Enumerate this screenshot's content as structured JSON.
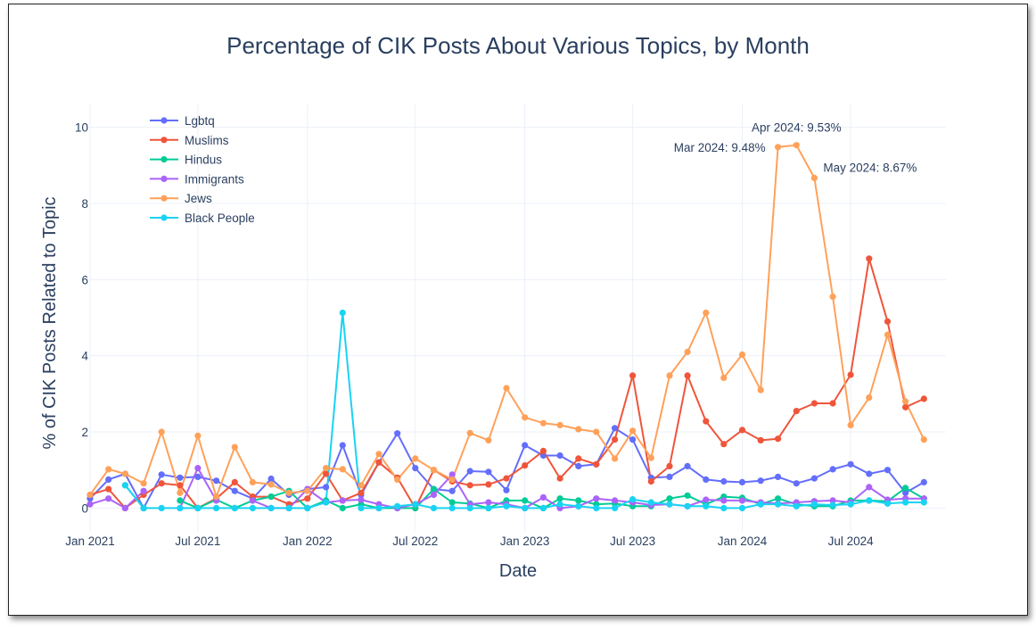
{
  "chart_data": {
    "type": "line",
    "title": "Percentage of CIK Posts About Various Topics, by Month",
    "xlabel": "Date",
    "ylabel": "% of CIK Posts Related to Topic",
    "ylim": [
      -0.6,
      10.6
    ],
    "xlim": [
      "2021-01-01",
      "2024-12-08"
    ],
    "grid": true,
    "legend_position": "top-left",
    "yticks": [
      0,
      2,
      4,
      6,
      8,
      10
    ],
    "xticks": [
      {
        "date": "2021-01-01",
        "label": "Jan 2021"
      },
      {
        "date": "2021-07-01",
        "label": "Jul 2021"
      },
      {
        "date": "2022-01-01",
        "label": "Jan 2022"
      },
      {
        "date": "2022-07-01",
        "label": "Jul 2022"
      },
      {
        "date": "2023-01-01",
        "label": "Jan 2023"
      },
      {
        "date": "2023-07-01",
        "label": "Jul 2023"
      },
      {
        "date": "2024-01-01",
        "label": "Jan 2024"
      },
      {
        "date": "2024-07-01",
        "label": "Jul 2024"
      }
    ],
    "x": [
      "2021-01",
      "2021-02",
      "2021-03",
      "2021-04",
      "2021-05",
      "2021-06",
      "2021-07",
      "2021-08",
      "2021-09",
      "2021-10",
      "2021-11",
      "2021-12",
      "2022-01",
      "2022-02",
      "2022-03",
      "2022-04",
      "2022-05",
      "2022-06",
      "2022-07",
      "2022-08",
      "2022-09",
      "2022-10",
      "2022-11",
      "2022-12",
      "2023-01",
      "2023-02",
      "2023-03",
      "2023-04",
      "2023-05",
      "2023-06",
      "2023-07",
      "2023-08",
      "2023-09",
      "2023-10",
      "2023-11",
      "2023-12",
      "2024-01",
      "2024-02",
      "2024-03",
      "2024-04",
      "2024-05",
      "2024-06",
      "2024-07",
      "2024-08",
      "2024-09",
      "2024-10",
      "2024-11"
    ],
    "series": [
      {
        "name": "Lgbtq",
        "color": "#636efa",
        "values": [
          0.25,
          0.75,
          0.9,
          0.0,
          0.88,
          0.8,
          0.82,
          0.72,
          0.45,
          0.25,
          0.77,
          0.35,
          0.5,
          0.55,
          1.65,
          0.35,
          1.2,
          1.96,
          1.05,
          0.5,
          0.45,
          0.97,
          0.95,
          0.47,
          1.65,
          1.38,
          1.38,
          1.1,
          1.15,
          2.1,
          1.8,
          0.8,
          0.82,
          1.1,
          0.75,
          0.7,
          0.68,
          0.72,
          0.82,
          0.65,
          0.78,
          1.02,
          1.15,
          0.9,
          1.0,
          0.4,
          0.68
        ]
      },
      {
        "name": "Muslims",
        "color": "#ef553b",
        "values": [
          0.35,
          0.5,
          0.0,
          0.35,
          0.65,
          0.6,
          0.0,
          0.25,
          0.68,
          0.3,
          0.3,
          0.1,
          0.25,
          0.9,
          0.2,
          0.4,
          1.2,
          0.8,
          0.0,
          1.0,
          0.7,
          0.6,
          0.62,
          0.78,
          1.12,
          1.5,
          0.78,
          1.3,
          1.15,
          1.8,
          3.48,
          0.7,
          1.1,
          3.48,
          2.28,
          1.68,
          2.05,
          1.78,
          1.82,
          2.55,
          2.75,
          2.75,
          3.5,
          6.55,
          4.9,
          2.65,
          2.87
        ]
      },
      {
        "name": "Hindus",
        "color": "#00cc96",
        "values": [
          null,
          null,
          0.6,
          0.0,
          null,
          0.2,
          0.0,
          0.22,
          0.0,
          0.2,
          0.3,
          0.45,
          0.0,
          0.2,
          0.0,
          0.1,
          0.0,
          0.0,
          0.0,
          0.5,
          0.15,
          0.12,
          0.0,
          0.2,
          0.2,
          0.0,
          0.25,
          0.2,
          0.1,
          0.12,
          0.05,
          0.05,
          0.25,
          0.33,
          0.1,
          0.3,
          0.27,
          0.1,
          0.25,
          0.1,
          0.05,
          0.05,
          0.2,
          0.2,
          0.18,
          0.53,
          0.25
        ]
      },
      {
        "name": "Immigrants",
        "color": "#ab63fa",
        "values": [
          0.1,
          0.25,
          0.0,
          0.45,
          null,
          0.0,
          1.05,
          0.2,
          null,
          0.2,
          0.0,
          0.0,
          0.5,
          0.15,
          0.2,
          0.22,
          0.1,
          0.0,
          0.1,
          0.35,
          0.88,
          0.1,
          0.15,
          0.1,
          0.0,
          0.28,
          0.0,
          0.05,
          0.25,
          0.2,
          0.15,
          0.08,
          0.1,
          0.05,
          0.22,
          0.2,
          0.2,
          0.15,
          0.12,
          0.15,
          0.18,
          0.2,
          0.15,
          0.55,
          0.22,
          0.25,
          0.25
        ]
      },
      {
        "name": "Jews",
        "color": "#ffa15a",
        "values": [
          0.35,
          1.02,
          0.9,
          0.65,
          2.0,
          0.4,
          1.9,
          0.3,
          1.6,
          0.68,
          0.62,
          0.4,
          0.45,
          1.05,
          1.02,
          0.6,
          1.42,
          0.75,
          1.3,
          1.0,
          0.75,
          1.97,
          1.78,
          3.15,
          2.38,
          2.23,
          2.18,
          2.07,
          2.0,
          1.3,
          2.03,
          1.32,
          3.48,
          4.1,
          5.13,
          3.42,
          4.03,
          3.1,
          9.48,
          9.53,
          8.67,
          5.55,
          2.18,
          2.9,
          4.55,
          2.8,
          1.8
        ]
      },
      {
        "name": "Black People",
        "color": "#19d3f3",
        "values": [
          null,
          null,
          0.6,
          0.0,
          0.0,
          0.0,
          0.0,
          0.0,
          0.0,
          0.0,
          0.0,
          0.0,
          0.0,
          0.15,
          5.13,
          0.0,
          0.0,
          0.05,
          0.1,
          0.0,
          0.0,
          0.0,
          0.0,
          0.05,
          0.0,
          0.0,
          0.1,
          0.05,
          0.0,
          0.0,
          0.23,
          0.15,
          0.1,
          0.05,
          0.05,
          0.0,
          0.0,
          0.1,
          0.1,
          0.05,
          0.1,
          0.08,
          0.1,
          0.2,
          0.12,
          0.15,
          0.15
        ]
      }
    ],
    "annotations": [
      {
        "text": "Mar 2024: 9.48%",
        "x": "2024-03",
        "y": 9.48,
        "side": "left"
      },
      {
        "text": "Apr 2024: 9.53%",
        "x": "2024-04",
        "y": 9.53,
        "side": "above"
      },
      {
        "text": "May 2024: 8.67%",
        "x": "2024-05",
        "y": 8.67,
        "side": "right"
      }
    ]
  }
}
